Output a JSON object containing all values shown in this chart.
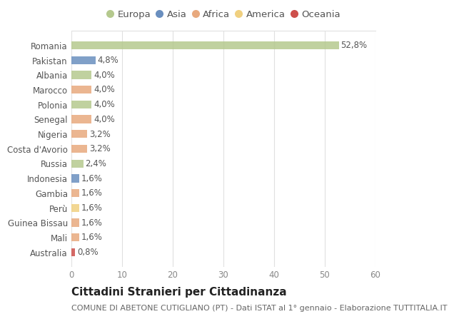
{
  "categories": [
    "Romania",
    "Pakistan",
    "Albania",
    "Marocco",
    "Polonia",
    "Senegal",
    "Nigeria",
    "Costa d'Avorio",
    "Russia",
    "Indonesia",
    "Gambia",
    "Perù",
    "Guinea Bissau",
    "Mali",
    "Australia"
  ],
  "values": [
    52.8,
    4.8,
    4.0,
    4.0,
    4.0,
    4.0,
    3.2,
    3.2,
    2.4,
    1.6,
    1.6,
    1.6,
    1.6,
    1.6,
    0.8
  ],
  "labels": [
    "52,8%",
    "4,8%",
    "4,0%",
    "4,0%",
    "4,0%",
    "4,0%",
    "3,2%",
    "3,2%",
    "2,4%",
    "1,6%",
    "1,6%",
    "1,6%",
    "1,6%",
    "1,6%",
    "0,8%"
  ],
  "colors": [
    "#b5c98e",
    "#6a8fbf",
    "#b5c98e",
    "#e8a97e",
    "#b5c98e",
    "#e8a97e",
    "#e8a97e",
    "#e8a97e",
    "#b5c98e",
    "#6a8fbf",
    "#e8a97e",
    "#f0d080",
    "#e8a97e",
    "#e8a97e",
    "#cd4f4b"
  ],
  "continent_labels": [
    "Europa",
    "Asia",
    "Africa",
    "America",
    "Oceania"
  ],
  "continent_colors": [
    "#b5c98e",
    "#6a8fbf",
    "#e8a97e",
    "#f0d080",
    "#cd4f4b"
  ],
  "title": "Cittadini Stranieri per Cittadinanza",
  "subtitle": "COMUNE DI ABETONE CUTIGLIANO (PT) - Dati ISTAT al 1° gennaio - Elaborazione TUTTITALIA.IT",
  "xlim": [
    0,
    60
  ],
  "xticks": [
    0,
    10,
    20,
    30,
    40,
    50,
    60
  ],
  "background_color": "#ffffff",
  "grid_color": "#e0e0e0",
  "bar_height": 0.55,
  "title_fontsize": 11,
  "subtitle_fontsize": 8,
  "label_fontsize": 8.5,
  "tick_fontsize": 8.5,
  "legend_fontsize": 9.5
}
